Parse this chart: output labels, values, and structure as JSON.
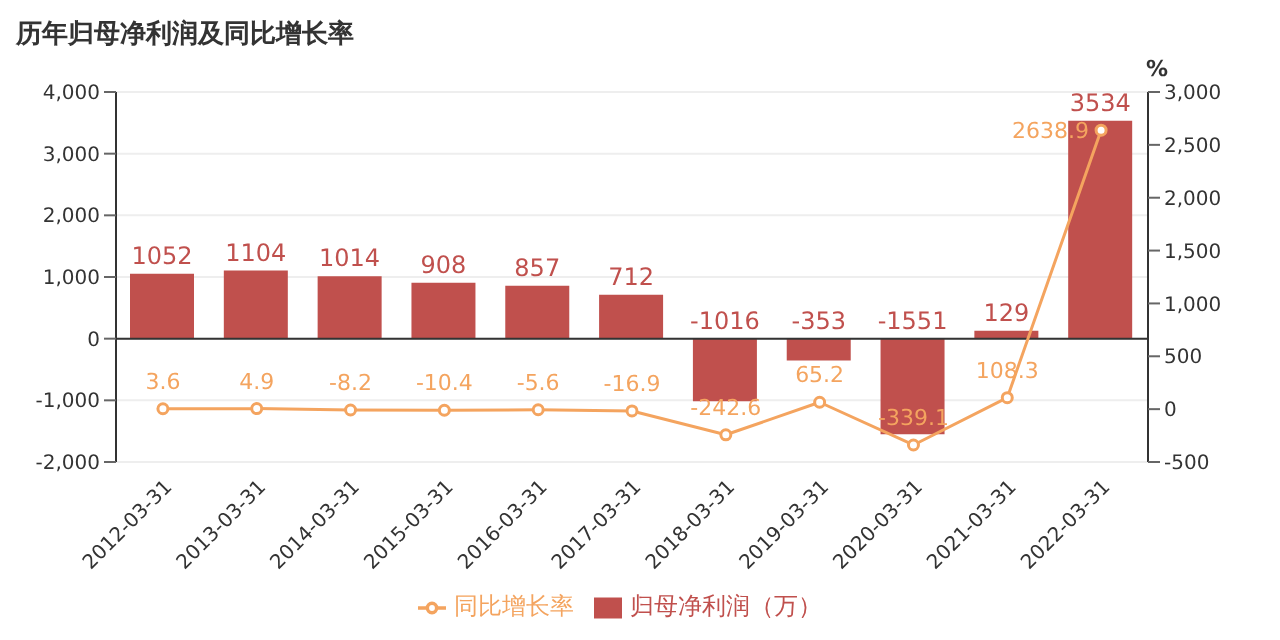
{
  "chart_data": {
    "type": "bar",
    "title": "历年归母净利润及同比增长率",
    "y2label": "%",
    "categories": [
      "2012-03-31",
      "2013-03-31",
      "2014-03-31",
      "2015-03-31",
      "2016-03-31",
      "2017-03-31",
      "2018-03-31",
      "2019-03-31",
      "2020-03-31",
      "2021-03-31",
      "2022-03-31"
    ],
    "series": [
      {
        "name": "归母净利润（万）",
        "color": "#c0504d",
        "values": [
          1052,
          1104,
          1014,
          908,
          857,
          712,
          -1016,
          -353,
          -1551,
          129,
          3534
        ]
      },
      {
        "name": "同比增长率",
        "type": "line",
        "axis": "y2",
        "color": "#f4a45f",
        "marker": "circle",
        "values": [
          3.6,
          4.9,
          -8.2,
          -10.4,
          -5.6,
          -16.9,
          -242.6,
          65.2,
          -339.1,
          108.3,
          2638.9
        ]
      }
    ],
    "ylim": [
      -2000,
      4000
    ],
    "yticks": [
      {
        "value": -2000,
        "label": "-2,000"
      },
      {
        "value": -1000,
        "label": "-1,000"
      },
      0,
      {
        "value": 1000,
        "label": "1,000"
      },
      {
        "value": 2000,
        "label": "2,000"
      },
      {
        "value": 3000,
        "label": "3,000"
      },
      {
        "value": 4000,
        "label": "4,000"
      }
    ],
    "y2lim": [
      -500,
      3000
    ],
    "y2ticks": [
      -500,
      0,
      500,
      {
        "value": 1000,
        "label": "1,000"
      },
      {
        "value": 1500,
        "label": "1,500"
      },
      {
        "value": 2000,
        "label": "2,000"
      },
      {
        "value": 2500,
        "label": "2,500"
      },
      {
        "value": 3000,
        "label": "3,000"
      }
    ],
    "data_labels": true,
    "legend": "bottom",
    "grid": "y"
  }
}
